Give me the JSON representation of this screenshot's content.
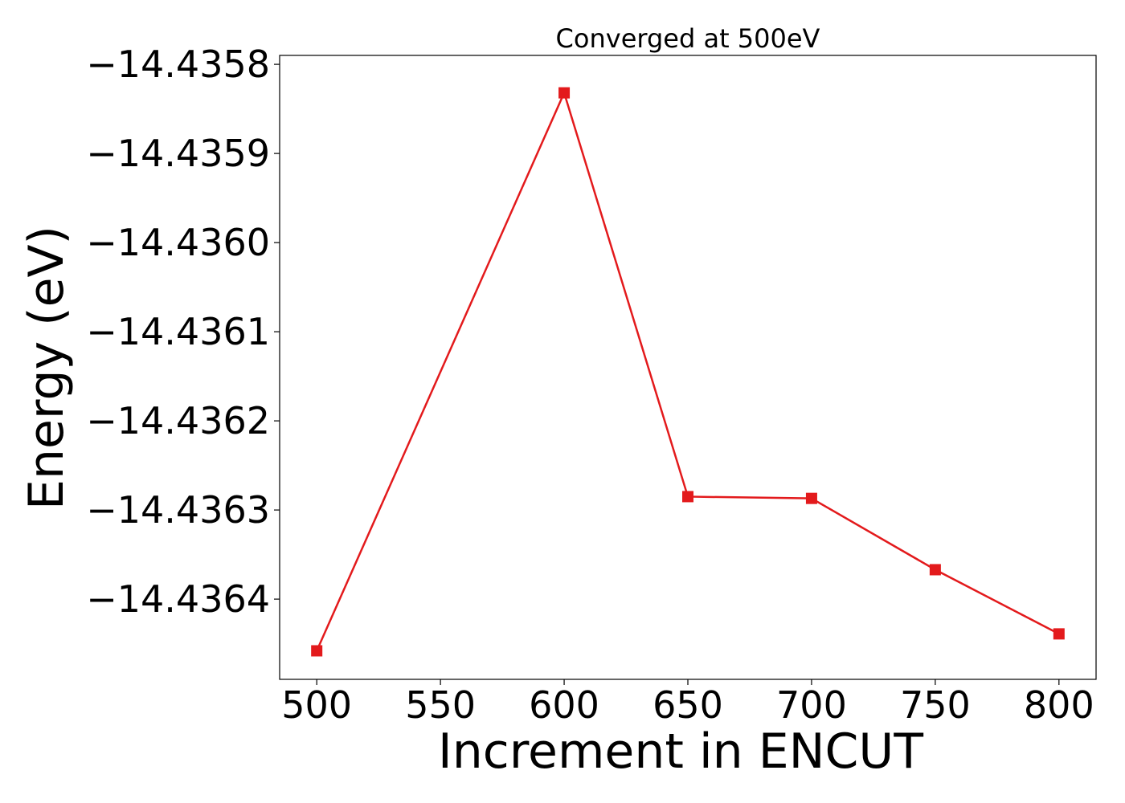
{
  "chart_data": {
    "type": "line",
    "title": "Converged at 500eV",
    "xlabel": "Increment in ENCUT",
    "ylabel": "Energy (eV)",
    "x": [
      500,
      600,
      650,
      700,
      750,
      800
    ],
    "series": [
      {
        "values": [
          -14.436458,
          -14.435832,
          -14.436285,
          -14.436287,
          -14.436367,
          -14.436439
        ],
        "color": "#e31a1c",
        "marker": "square"
      }
    ],
    "xticks": [
      500,
      550,
      600,
      650,
      700,
      750,
      800
    ],
    "xtick_labels": [
      "500",
      "550",
      "600",
      "650",
      "700",
      "750",
      "800"
    ],
    "yticks": [
      -14.4358,
      -14.4359,
      -14.436,
      -14.4361,
      -14.4362,
      -14.4363,
      -14.4364
    ],
    "ytick_labels": [
      "−14.4358",
      "−14.4359",
      "−14.4360",
      "−14.4361",
      "−14.4362",
      "−14.4363",
      "−14.4364"
    ],
    "xlim": [
      485,
      815
    ],
    "ylim": [
      -14.43649,
      -14.43579
    ],
    "grid": false,
    "legend": "none"
  }
}
